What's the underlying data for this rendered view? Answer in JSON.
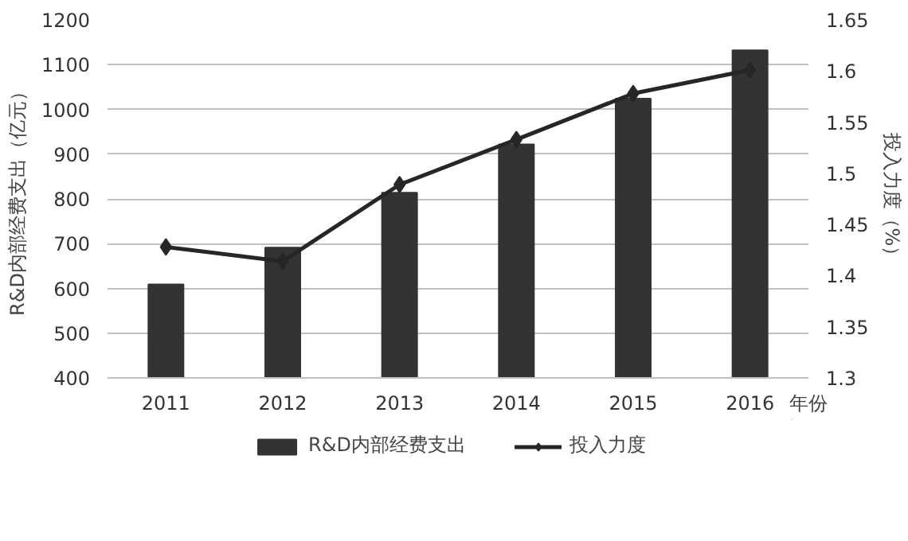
{
  "chart_data": {
    "type": "bar",
    "categories": [
      "2011",
      "2012",
      "2013",
      "2014",
      "2015",
      "2016"
    ],
    "xlabel": "年份",
    "ylabel": "R&D内部经费支出（亿元）",
    "y2label": "投入力度（%）",
    "series": [
      {
        "name": "R&D内部经费支出",
        "color": "#333333",
        "values": [
          609,
          691,
          814,
          922,
          1024,
          1132
        ]
      },
      {
        "name": "投入力度",
        "type": "line",
        "axis": "y2",
        "color": "#262626",
        "marker": "diamond",
        "values": [
          1.428,
          1.414,
          1.489,
          1.533,
          1.578,
          1.601
        ]
      }
    ],
    "ylim": [
      400,
      1200
    ],
    "yticks": [
      400,
      500,
      600,
      700,
      800,
      900,
      1000,
      1100,
      1200
    ],
    "y2lim": [
      1.3,
      1.65
    ],
    "y2ticks": [
      {
        "value": 1.3,
        "label": "1.3"
      },
      {
        "value": 1.35,
        "label": "1.35"
      },
      {
        "value": 1.4,
        "label": "1.4"
      },
      {
        "value": 1.45,
        "label": "1.45"
      },
      {
        "value": 1.5,
        "label": "1.5"
      },
      {
        "value": 1.55,
        "label": "1.55"
      },
      {
        "value": 1.6,
        "label": "1.6"
      },
      {
        "value": 1.65,
        "label": "1.65"
      }
    ],
    "grid": "y",
    "legend": "bottom"
  }
}
